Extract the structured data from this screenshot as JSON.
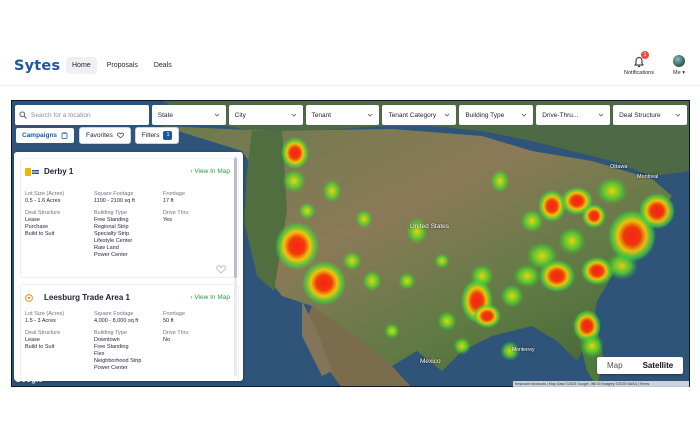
{
  "header": {
    "logo": "Sytes",
    "nav": [
      "Home",
      "Proposals",
      "Deals"
    ],
    "notifications_label": "Notifications",
    "notifications_count": "1",
    "me_label": "Me"
  },
  "filters": {
    "search_placeholder": "Search for a location",
    "dropdowns": [
      "State",
      "City",
      "Tenant",
      "Tenant Category",
      "Building Type",
      "Drive-Thru...",
      "Deal Structure"
    ],
    "chips": {
      "campaigns": "Campaigns",
      "favorites": "Favorites",
      "filters": "Filters",
      "filters_count": "1"
    }
  },
  "cards": [
    {
      "title": "Derby 1",
      "view_in_map": "View In Map",
      "lot_size_label": "Lot Size (Acres)",
      "lot_size": "0.5 - 1.6 Acres",
      "sqft_label": "Square Footage",
      "sqft": "1100 - 2100 sq ft",
      "frontage_label": "Frontage",
      "frontage": "17 ft",
      "deal_structure_label": "Deal Structure",
      "deal_structure": [
        "Lease",
        "Purchase",
        "Build to Suit"
      ],
      "building_type_label": "Building Type",
      "building_type": [
        "Free Standing",
        "Regional Strip",
        "Specialty Strip",
        "Lifestyle Center",
        "Raw Land",
        "Power Center"
      ],
      "drive_thru_label": "Drive Thru",
      "drive_thru": "Yes"
    },
    {
      "title": "Leesburg Trade Area 1",
      "view_in_map": "View In Map",
      "lot_size_label": "Lot Size (Acres)",
      "lot_size": "1.5 - 3 Acres",
      "sqft_label": "Square Footage",
      "sqft": "4,000 - 8,000 sq ft",
      "frontage_label": "Frontage",
      "frontage": "50 ft",
      "deal_structure_label": "Deal Structure",
      "deal_structure": [
        "Lease",
        "Build to Suit"
      ],
      "building_type_label": "Building Type",
      "building_type": [
        "Downtown",
        "Free Standing",
        "Flex",
        "Neighborhood Strip",
        "Power Center"
      ],
      "drive_thru_label": "Drive Thru",
      "drive_thru": "No"
    }
  ],
  "map": {
    "labels": {
      "united_states": "United States",
      "mexico": "Mexico",
      "ottawa": "Ottawa",
      "monterrey": "Monterrey",
      "montreal": "Montreal"
    },
    "toggle": [
      "Map",
      "Satellite"
    ],
    "attribution": "Keyboard shortcuts  |  Map Data ©2025 Google, INEGI Imagery ©2025 NASA  |  Terms",
    "google": "Google"
  },
  "colors": {
    "brand": "#1e55a4",
    "accent_green": "#2e9a47",
    "badge_red": "#e74c3c"
  }
}
